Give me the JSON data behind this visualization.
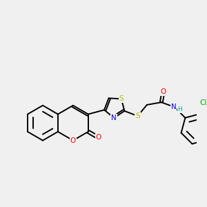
{
  "background_color": "#f0f0f0",
  "bond_color": "#000000",
  "figsize": [
    3.0,
    3.0
  ],
  "dpi": 100,
  "atom_colors": {
    "O": "#ff0000",
    "N": "#0000ff",
    "S": "#b8b800",
    "Cl": "#00aa00",
    "C": "#000000",
    "H": "#00aaaa"
  },
  "lw": 1.4,
  "xlim": [
    0,
    10
  ],
  "ylim": [
    0,
    10
  ]
}
